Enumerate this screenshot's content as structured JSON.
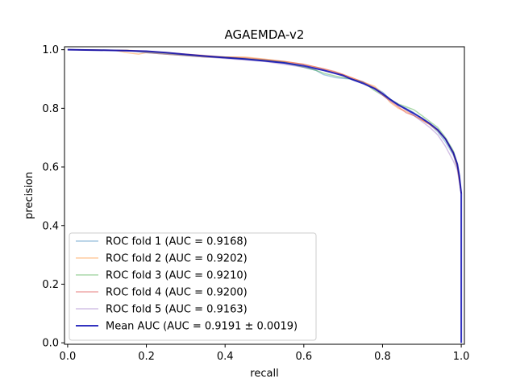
{
  "chart_data": {
    "type": "line",
    "title": "AGAEMDA-v2",
    "xlabel": "recall",
    "ylabel": "precision",
    "xlim": [
      -0.008,
      1.008
    ],
    "ylim": [
      -0.005,
      1.01
    ],
    "xticks": [
      0.0,
      0.2,
      0.4,
      0.6,
      0.8,
      1.0
    ],
    "xtick_labels": [
      "0.0",
      "0.2",
      "0.4",
      "0.6",
      "0.8",
      "1.0"
    ],
    "yticks": [
      0.0,
      0.2,
      0.4,
      0.6,
      0.8,
      1.0
    ],
    "ytick_labels": [
      "0.0",
      "0.2",
      "0.4",
      "0.6",
      "0.8",
      "1.0"
    ],
    "grid": false,
    "legend_position": "lower-left",
    "series": [
      {
        "name": "ROC fold 1 (AUC = 0.9168)",
        "color": "#1f77b4",
        "opacity": 0.4,
        "x": [
          0,
          0.15,
          0.2,
          0.25,
          0.3,
          0.35,
          0.4,
          0.45,
          0.5,
          0.55,
          0.6,
          0.63,
          0.65,
          0.68,
          0.7,
          0.72,
          0.75,
          0.78,
          0.8,
          0.82,
          0.84,
          0.86,
          0.88,
          0.9,
          0.92,
          0.94,
          0.96,
          0.98,
          0.99,
          1.0
        ],
        "y": [
          1.0,
          0.998,
          0.99,
          0.985,
          0.98,
          0.975,
          0.972,
          0.968,
          0.963,
          0.955,
          0.94,
          0.93,
          0.915,
          0.905,
          0.902,
          0.9,
          0.888,
          0.87,
          0.855,
          0.83,
          0.81,
          0.8,
          0.785,
          0.765,
          0.745,
          0.72,
          0.685,
          0.64,
          0.6,
          0.51
        ]
      },
      {
        "name": "ROC fold 2 (AUC = 0.9202)",
        "color": "#ff7f0e",
        "opacity": 0.4,
        "x": [
          0,
          0.12,
          0.15,
          0.18,
          0.2,
          0.25,
          0.3,
          0.35,
          0.4,
          0.45,
          0.5,
          0.55,
          0.6,
          0.65,
          0.7,
          0.73,
          0.75,
          0.78,
          0.8,
          0.82,
          0.84,
          0.86,
          0.88,
          0.9,
          0.92,
          0.94,
          0.96,
          0.98,
          0.99,
          1.0
        ],
        "y": [
          1.0,
          0.998,
          0.99,
          0.985,
          0.99,
          0.985,
          0.98,
          0.975,
          0.975,
          0.975,
          0.968,
          0.96,
          0.95,
          0.935,
          0.915,
          0.9,
          0.89,
          0.875,
          0.85,
          0.82,
          0.8,
          0.79,
          0.775,
          0.76,
          0.745,
          0.725,
          0.695,
          0.65,
          0.605,
          0.51
        ]
      },
      {
        "name": "ROC fold 3 (AUC = 0.9210)",
        "color": "#2ca02c",
        "opacity": 0.4,
        "x": [
          0,
          0.15,
          0.2,
          0.25,
          0.3,
          0.35,
          0.4,
          0.45,
          0.5,
          0.55,
          0.6,
          0.63,
          0.65,
          0.68,
          0.7,
          0.72,
          0.75,
          0.77,
          0.78,
          0.8,
          0.82,
          0.84,
          0.86,
          0.88,
          0.9,
          0.92,
          0.94,
          0.96,
          0.98,
          0.99,
          1.0
        ],
        "y": [
          1.0,
          0.998,
          0.992,
          0.988,
          0.982,
          0.978,
          0.975,
          0.97,
          0.965,
          0.958,
          0.94,
          0.93,
          0.92,
          0.91,
          0.905,
          0.9,
          0.89,
          0.87,
          0.86,
          0.845,
          0.83,
          0.815,
          0.805,
          0.795,
          0.775,
          0.755,
          0.735,
          0.7,
          0.655,
          0.61,
          0.51
        ]
      },
      {
        "name": "ROC fold 4 (AUC = 0.9200)",
        "color": "#d62728",
        "opacity": 0.4,
        "x": [
          0,
          0.15,
          0.2,
          0.25,
          0.3,
          0.35,
          0.4,
          0.45,
          0.5,
          0.55,
          0.6,
          0.65,
          0.68,
          0.7,
          0.72,
          0.75,
          0.78,
          0.8,
          0.82,
          0.84,
          0.86,
          0.88,
          0.9,
          0.92,
          0.94,
          0.96,
          0.98,
          0.99,
          1.0
        ],
        "y": [
          1.0,
          0.998,
          0.995,
          0.99,
          0.985,
          0.98,
          0.975,
          0.972,
          0.966,
          0.96,
          0.95,
          0.935,
          0.925,
          0.915,
          0.905,
          0.89,
          0.87,
          0.845,
          0.825,
          0.805,
          0.785,
          0.775,
          0.76,
          0.745,
          0.725,
          0.695,
          0.645,
          0.6,
          0.51
        ]
      },
      {
        "name": "ROC fold 5 (AUC = 0.9163)",
        "color": "#9467bd",
        "opacity": 0.4,
        "x": [
          0,
          0.15,
          0.2,
          0.25,
          0.3,
          0.35,
          0.4,
          0.45,
          0.5,
          0.55,
          0.6,
          0.65,
          0.68,
          0.7,
          0.72,
          0.75,
          0.78,
          0.8,
          0.82,
          0.84,
          0.86,
          0.88,
          0.9,
          0.92,
          0.94,
          0.96,
          0.97,
          0.98,
          0.99,
          1.0
        ],
        "y": [
          1.0,
          0.998,
          0.99,
          0.985,
          0.98,
          0.975,
          0.97,
          0.965,
          0.96,
          0.95,
          0.94,
          0.93,
          0.92,
          0.91,
          0.9,
          0.89,
          0.865,
          0.845,
          0.825,
          0.81,
          0.795,
          0.775,
          0.755,
          0.735,
          0.71,
          0.67,
          0.645,
          0.62,
          0.59,
          0.51
        ]
      },
      {
        "name": "Mean AUC (AUC = 0.9191 ± 0.0019)",
        "color": "#0000b0",
        "opacity": 0.8,
        "x": [
          0,
          0.1,
          0.2,
          0.25,
          0.3,
          0.35,
          0.4,
          0.45,
          0.5,
          0.55,
          0.6,
          0.65,
          0.7,
          0.72,
          0.75,
          0.78,
          0.8,
          0.82,
          0.84,
          0.86,
          0.88,
          0.9,
          0.92,
          0.94,
          0.96,
          0.97,
          0.98,
          0.99,
          0.995,
          1.0,
          1.0
        ],
        "y": [
          1.0,
          0.998,
          0.995,
          0.99,
          0.984,
          0.978,
          0.973,
          0.968,
          0.962,
          0.955,
          0.945,
          0.93,
          0.912,
          0.9,
          0.885,
          0.867,
          0.85,
          0.83,
          0.812,
          0.797,
          0.782,
          0.766,
          0.748,
          0.727,
          0.695,
          0.672,
          0.648,
          0.61,
          0.57,
          0.51,
          0.0
        ]
      }
    ]
  }
}
